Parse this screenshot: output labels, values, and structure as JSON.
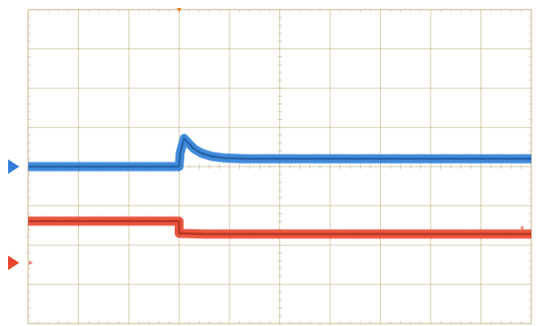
{
  "chart_data": {
    "type": "line",
    "title": "",
    "xlabel": "",
    "ylabel": "",
    "grid": true,
    "grid_divisions": {
      "x": 10,
      "y": 8
    },
    "xlim": [
      0,
      10
    ],
    "ylim": [
      -4,
      4
    ],
    "trigger_position_div": 3,
    "colors": {
      "grid": "#c8b98c",
      "frame": "#c8b98c",
      "channel_1": "#2f7fd8",
      "channel_2": "#e8452c",
      "trigger_marker": "#e87a1c"
    },
    "series": [
      {
        "channel": 1,
        "ground_level_div": 0,
        "x": [
          0,
          3.0,
          3.02,
          3.1,
          3.2,
          3.3,
          3.45,
          3.65,
          3.9,
          4.3,
          5.0,
          6.5,
          10
        ],
        "y": [
          0,
          0,
          0.35,
          0.72,
          0.58,
          0.45,
          0.34,
          0.26,
          0.22,
          0.2,
          0.2,
          0.2,
          0.2
        ]
      },
      {
        "channel": 2,
        "ground_level_div": -2.45,
        "x": [
          0,
          3.0,
          3.0,
          3.5,
          10
        ],
        "y": [
          -1.39,
          -1.39,
          -1.7,
          -1.72,
          -1.72
        ]
      }
    ]
  }
}
